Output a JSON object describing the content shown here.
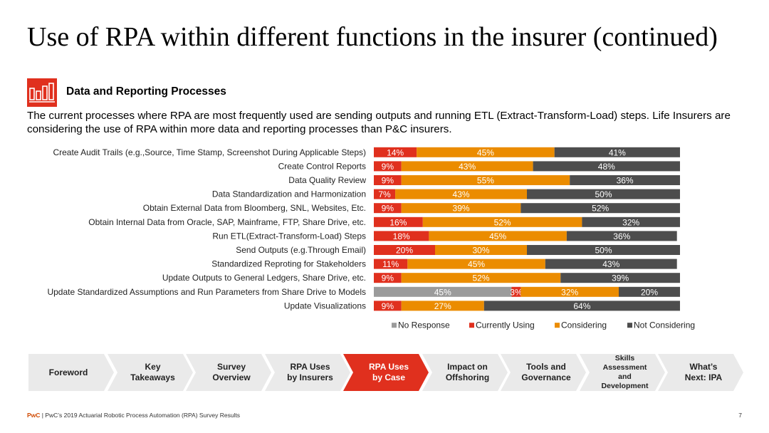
{
  "title": "Use of RPA within different functions in the insurer (continued)",
  "section": {
    "title": "Data and Reporting Processes",
    "icon": "bar-chart-icon"
  },
  "intro": "The current processes where RPA are most frequently used are sending outputs and running ETL (Extract-Transform-Load) steps. Life Insurers are considering the use of RPA within more data and reporting processes than P&C insurers.",
  "colors": {
    "no_response": "#9b9b9b",
    "currently_using": "#e0301e",
    "considering": "#eb8c00",
    "not_considering": "#4d4d4d",
    "accent": "#e0301e",
    "nav": "#eaeaea"
  },
  "chart_data": {
    "type": "bar",
    "orientation": "horizontal",
    "stacked": true,
    "categories": [
      "Create Audit Trails (e.g.,Source, Time Stamp, Screenshot During Applicable Steps)",
      "Create Control Reports",
      "Data Quality Review",
      "Data Standardization and Harmonization",
      "Obtain External Data from Bloomberg, SNL, Websites, Etc.",
      "Obtain Internal Data from Oracle, SAP, Mainframe, FTP, Share Drive, etc.",
      "Run ETL(Extract-Transform-Load) Steps",
      "Send Outputs (e.g.Through Email)",
      "Standardized Reproting for Stakeholders",
      "Update Outputs to General Ledgers, Share Drive, etc.",
      "Update Standardized Assumptions and Run Parameters from Share Drive to Models",
      "Update Visualizations"
    ],
    "series": [
      {
        "name": "No Response",
        "color": "#9b9b9b",
        "values": [
          0,
          0,
          0,
          0,
          0,
          0,
          0,
          0,
          0,
          0,
          45,
          0
        ]
      },
      {
        "name": "Currently Using",
        "color": "#e0301e",
        "values": [
          14,
          9,
          9,
          7,
          9,
          16,
          18,
          20,
          11,
          9,
          3,
          9
        ]
      },
      {
        "name": "Considering",
        "color": "#eb8c00",
        "values": [
          45,
          43,
          55,
          43,
          39,
          52,
          45,
          30,
          45,
          52,
          32,
          27
        ]
      },
      {
        "name": "Not Considering",
        "color": "#4d4d4d",
        "values": [
          41,
          48,
          36,
          50,
          52,
          32,
          36,
          50,
          43,
          39,
          20,
          64
        ]
      }
    ],
    "xlim": [
      0,
      100
    ],
    "value_suffix": "%",
    "legend": [
      "No Response",
      "Currently Using",
      "Considering",
      "Not Considering"
    ],
    "legend_position": "bottom"
  },
  "nav": [
    {
      "label": "Foreword",
      "active": false
    },
    {
      "label": "Key Takeaways",
      "active": false
    },
    {
      "label": "Survey Overview",
      "active": false
    },
    {
      "label": "RPA Uses by Insurers",
      "active": false
    },
    {
      "label": "RPA Uses by Case",
      "active": true
    },
    {
      "label": "Impact on Offshoring",
      "active": false
    },
    {
      "label": "Tools and Governance",
      "active": false
    },
    {
      "label": "Skills Assessment and Development",
      "active": false
    },
    {
      "label": "What’s Next: IPA",
      "active": false
    }
  ],
  "footer": {
    "brand": "PwC",
    "text": " | PwC’s 2019 Actuarial Robotic Process Automation (RPA) Survey Results",
    "page": "7"
  }
}
